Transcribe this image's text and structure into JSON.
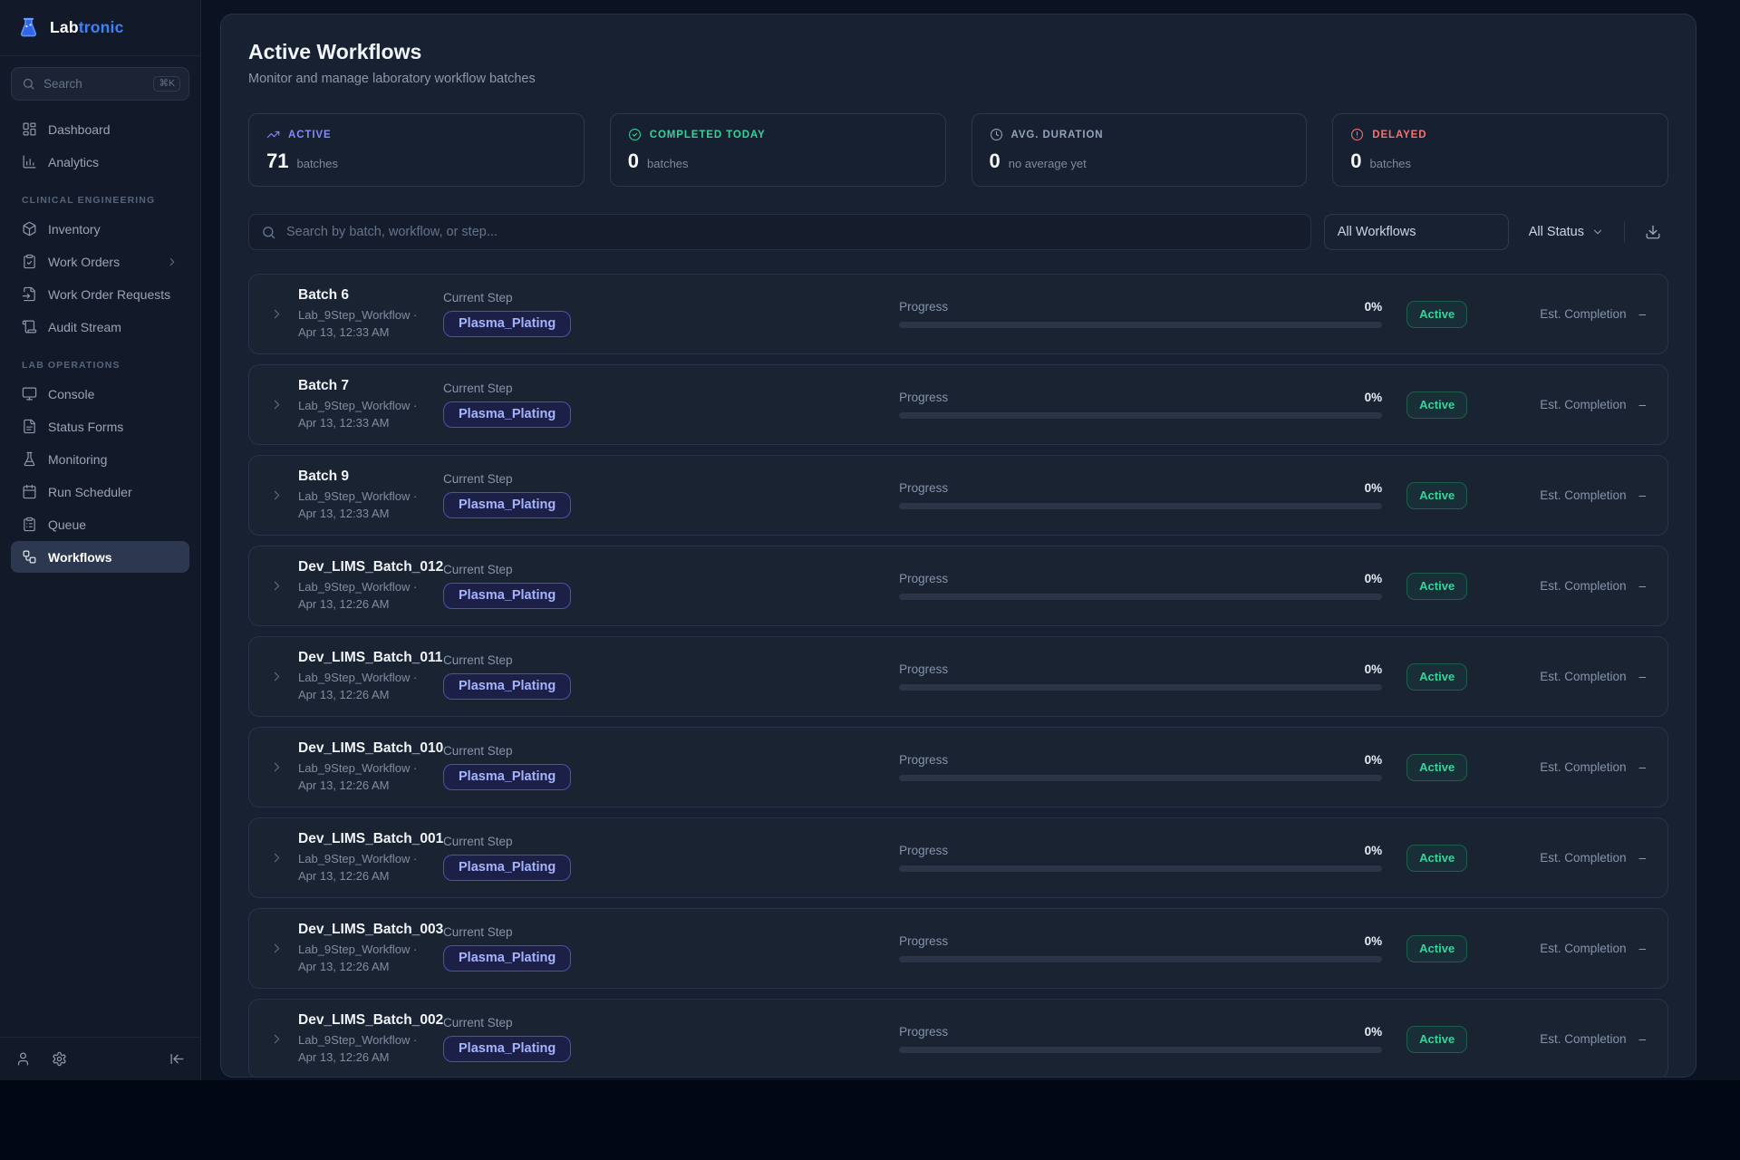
{
  "brand": {
    "name_primary": "Lab",
    "name_secondary": "tronic",
    "accent_color": "#3b82f6"
  },
  "sidebar": {
    "search": {
      "placeholder": "Search",
      "shortcut": "⌘K"
    },
    "sections": [
      {
        "label": "",
        "items": [
          {
            "label": "Dashboard",
            "icon": "dashboard"
          },
          {
            "label": "Analytics",
            "icon": "bar-chart"
          }
        ]
      },
      {
        "label": "CLINICAL ENGINEERING",
        "items": [
          {
            "label": "Inventory",
            "icon": "package"
          },
          {
            "label": "Work Orders",
            "icon": "clipboard-check",
            "has_chevron": true
          },
          {
            "label": "Work Order Requests",
            "icon": "file-input"
          },
          {
            "label": "Audit Stream",
            "icon": "scroll"
          }
        ]
      },
      {
        "label": "LAB OPERATIONS",
        "items": [
          {
            "label": "Console",
            "icon": "monitor"
          },
          {
            "label": "Status Forms",
            "icon": "file-text"
          },
          {
            "label": "Monitoring",
            "icon": "flask"
          },
          {
            "label": "Run Scheduler",
            "icon": "calendar"
          },
          {
            "label": "Queue",
            "icon": "clipboard-list"
          },
          {
            "label": "Workflows",
            "icon": "workflow",
            "active": true
          }
        ]
      }
    ]
  },
  "header": {
    "title": "Active Workflows",
    "subtitle": "Monitor and manage laboratory workflow batches"
  },
  "stats": [
    {
      "label": "ACTIVE",
      "value": "71",
      "sublabel": "batches",
      "icon": "trending-up",
      "color": "#818cf8"
    },
    {
      "label": "COMPLETED TODAY",
      "value": "0",
      "sublabel": "batches",
      "icon": "check-circle",
      "color": "#34d399"
    },
    {
      "label": "AVG. DURATION",
      "value": "0",
      "sublabel": "no average yet",
      "icon": "clock",
      "color": "#94a3b8"
    },
    {
      "label": "DELAYED",
      "value": "0",
      "sublabel": "batches",
      "icon": "alert-circle",
      "color": "#f87171"
    }
  ],
  "filters": {
    "search_placeholder": "Search by batch, workflow, or step...",
    "workflow_filter": "All Workflows",
    "status_filter": "All Status"
  },
  "table": {
    "labels": {
      "current_step": "Current Step",
      "progress": "Progress",
      "est_completion": "Est. Completion",
      "est_value": "–"
    },
    "rows": [
      {
        "name": "Batch 6",
        "workflow": "Lab_9Step_Workflow ·",
        "timestamp": "Apr 13, 12:33 AM",
        "step": "Plasma_Plating",
        "progress_pct": "0%",
        "progress": 0,
        "status": "Active"
      },
      {
        "name": "Batch 7",
        "workflow": "Lab_9Step_Workflow ·",
        "timestamp": "Apr 13, 12:33 AM",
        "step": "Plasma_Plating",
        "progress_pct": "0%",
        "progress": 0,
        "status": "Active"
      },
      {
        "name": "Batch 9",
        "workflow": "Lab_9Step_Workflow ·",
        "timestamp": "Apr 13, 12:33 AM",
        "step": "Plasma_Plating",
        "progress_pct": "0%",
        "progress": 0,
        "status": "Active"
      },
      {
        "name": "Dev_LIMS_Batch_012",
        "workflow": "Lab_9Step_Workflow ·",
        "timestamp": "Apr 13, 12:26 AM",
        "step": "Plasma_Plating",
        "progress_pct": "0%",
        "progress": 0,
        "status": "Active"
      },
      {
        "name": "Dev_LIMS_Batch_011",
        "workflow": "Lab_9Step_Workflow ·",
        "timestamp": "Apr 13, 12:26 AM",
        "step": "Plasma_Plating",
        "progress_pct": "0%",
        "progress": 0,
        "status": "Active"
      },
      {
        "name": "Dev_LIMS_Batch_010",
        "workflow": "Lab_9Step_Workflow ·",
        "timestamp": "Apr 13, 12:26 AM",
        "step": "Plasma_Plating",
        "progress_pct": "0%",
        "progress": 0,
        "status": "Active"
      },
      {
        "name": "Dev_LIMS_Batch_001",
        "workflow": "Lab_9Step_Workflow ·",
        "timestamp": "Apr 13, 12:26 AM",
        "step": "Plasma_Plating",
        "progress_pct": "0%",
        "progress": 0,
        "status": "Active"
      },
      {
        "name": "Dev_LIMS_Batch_003",
        "workflow": "Lab_9Step_Workflow ·",
        "timestamp": "Apr 13, 12:26 AM",
        "step": "Plasma_Plating",
        "progress_pct": "0%",
        "progress": 0,
        "status": "Active"
      },
      {
        "name": "Dev_LIMS_Batch_002",
        "workflow": "Lab_9Step_Workflow ·",
        "timestamp": "Apr 13, 12:26 AM",
        "step": "Plasma_Plating",
        "progress_pct": "0%",
        "progress": 0,
        "status": "Active"
      }
    ]
  }
}
